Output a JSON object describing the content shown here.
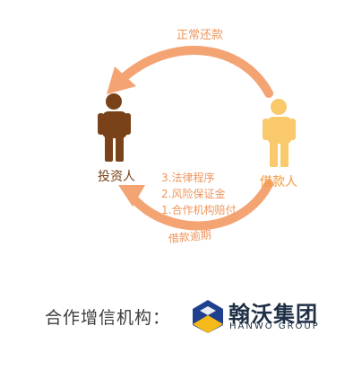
{
  "diagram": {
    "top_arrow_label": "正常还款",
    "bottom_arrow_label": "借款逾期",
    "investor_label": "投资人",
    "borrower_label": "借款人",
    "protections": [
      "3.法律程序",
      "2.风险保证金",
      "1.合作机构赔付"
    ]
  },
  "partner": {
    "label": "合作增信机构：",
    "logo_name_cn": "翰沃集团",
    "logo_name_en": "HANWO GROUP"
  },
  "colors": {
    "arrow": "#f4a373",
    "arrow_text": "#ef955c",
    "investor": "#7a4218",
    "borrower": "#f9c96c",
    "investor_text": "#7a4218",
    "borrower_text": "#f39a3a",
    "logo_blue": "#1f3f8f",
    "logo_yellow": "#f6b91a",
    "logo_text": "#1e2f45"
  }
}
